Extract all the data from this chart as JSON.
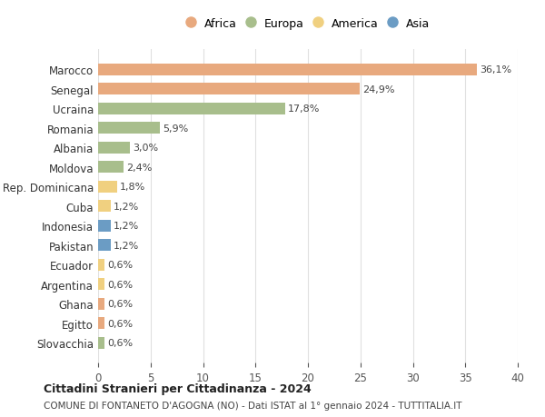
{
  "countries": [
    "Marocco",
    "Senegal",
    "Ucraina",
    "Romania",
    "Albania",
    "Moldova",
    "Rep. Dominicana",
    "Cuba",
    "Indonesia",
    "Pakistan",
    "Ecuador",
    "Argentina",
    "Ghana",
    "Egitto",
    "Slovacchia"
  ],
  "values": [
    36.1,
    24.9,
    17.8,
    5.9,
    3.0,
    2.4,
    1.8,
    1.2,
    1.2,
    1.2,
    0.6,
    0.6,
    0.6,
    0.6,
    0.6
  ],
  "labels": [
    "36,1%",
    "24,9%",
    "17,8%",
    "5,9%",
    "3,0%",
    "2,4%",
    "1,8%",
    "1,2%",
    "1,2%",
    "1,2%",
    "0,6%",
    "0,6%",
    "0,6%",
    "0,6%",
    "0,6%"
  ],
  "continents": [
    "Africa",
    "Africa",
    "Europa",
    "Europa",
    "Europa",
    "Europa",
    "America",
    "America",
    "Asia",
    "Asia",
    "America",
    "America",
    "Africa",
    "Africa",
    "Europa"
  ],
  "colors": {
    "Africa": "#E8A97E",
    "Europa": "#A8BE8C",
    "America": "#F0D080",
    "Asia": "#6B9CC4"
  },
  "legend_order": [
    "Africa",
    "Europa",
    "America",
    "Asia"
  ],
  "title": "Cittadini Stranieri per Cittadinanza - 2024",
  "subtitle": "COMUNE DI FONTANETO D'AGOGNA (NO) - Dati ISTAT al 1° gennaio 2024 - TUTTITALIA.IT",
  "xlim": [
    0,
    40
  ],
  "xticks": [
    0,
    5,
    10,
    15,
    20,
    25,
    30,
    35,
    40
  ],
  "background_color": "#ffffff",
  "grid_color": "#e0e0e0"
}
